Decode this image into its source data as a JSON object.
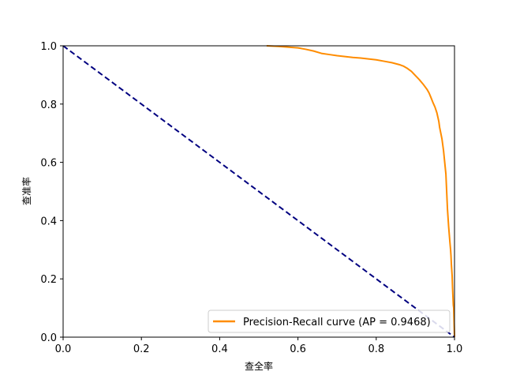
{
  "chart_data": {
    "type": "line",
    "xlabel": "查全率",
    "ylabel": "查准率",
    "xlim": [
      0,
      1
    ],
    "ylim": [
      0,
      1
    ],
    "xticks": [
      "0.0",
      "0.2",
      "0.4",
      "0.6",
      "0.8",
      "1.0"
    ],
    "yticks": [
      "0.0",
      "0.2",
      "0.4",
      "0.6",
      "0.8",
      "1.0"
    ],
    "grid": false,
    "legend_position": "lower-right",
    "series": [
      {
        "name": "Precision-Recall curve (AP = 0.9468)",
        "color": "#ff8c00",
        "style": "solid",
        "x": [
          0.52,
          0.55,
          0.58,
          0.6,
          0.62,
          0.64,
          0.66,
          0.68,
          0.7,
          0.72,
          0.74,
          0.76,
          0.78,
          0.8,
          0.82,
          0.84,
          0.86,
          0.87,
          0.88,
          0.89,
          0.9,
          0.91,
          0.92,
          0.93,
          0.935,
          0.94,
          0.945,
          0.95,
          0.955,
          0.96,
          0.962,
          0.965,
          0.968,
          0.97,
          0.972,
          0.975,
          0.978,
          0.98,
          0.982,
          0.985,
          0.988,
          0.99,
          0.991,
          0.992,
          0.993,
          0.994,
          0.995,
          0.996,
          0.997,
          0.998,
          1.0
        ],
        "y": [
          1.0,
          0.998,
          0.995,
          0.993,
          0.988,
          0.982,
          0.974,
          0.97,
          0.966,
          0.963,
          0.96,
          0.958,
          0.955,
          0.952,
          0.947,
          0.942,
          0.935,
          0.93,
          0.922,
          0.912,
          0.898,
          0.884,
          0.868,
          0.85,
          0.838,
          0.822,
          0.805,
          0.79,
          0.77,
          0.74,
          0.72,
          0.7,
          0.68,
          0.66,
          0.64,
          0.6,
          0.56,
          0.5,
          0.44,
          0.38,
          0.33,
          0.3,
          0.28,
          0.25,
          0.23,
          0.21,
          0.17,
          0.14,
          0.11,
          0.1,
          0.0
        ]
      },
      {
        "name": "",
        "color": "#000080",
        "style": "dashed",
        "x": [
          0,
          1
        ],
        "y": [
          1,
          0
        ]
      }
    ]
  }
}
